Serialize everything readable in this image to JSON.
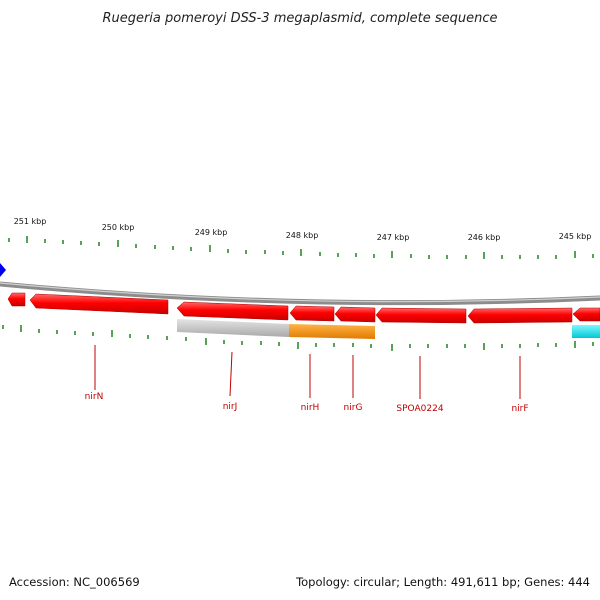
{
  "title": "Ruegeria pomeroyi DSS-3 megaplasmid, complete sequence",
  "footer": {
    "accession": "Accession: NC_006569",
    "summary": "Topology: circular; Length: 491,611 bp; Genes: 444"
  },
  "scale_labels": [
    "251 kbp",
    "250 kbp",
    "249 kbp",
    "248 kbp",
    "247 kbp",
    "246 kbp",
    "245 kbp"
  ],
  "gene_labels": [
    "nirN",
    "nirJ",
    "nirH",
    "nirG",
    "SPOA0224",
    "nirF"
  ],
  "colors": {
    "backbone": "#8c8c8c",
    "gene_red": "#ff0000",
    "gray_feature": "#bdbdbd",
    "orange_feature": "#ff8c00",
    "cyan_feature": "#00e5ee",
    "blue_marker": "#0000ee",
    "ticks": "#2e8b2e",
    "label_red": "#c00000"
  }
}
